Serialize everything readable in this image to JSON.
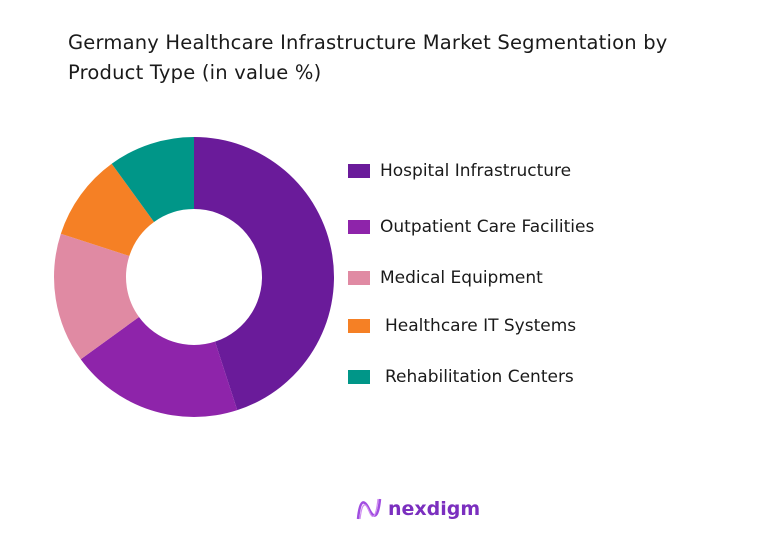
{
  "chart_data": {
    "type": "pie",
    "variant": "donut",
    "title": "Germany Healthcare Infrastructure Market Segmentation by Product Type (in value %)",
    "categories": [
      "Hospital Infrastructure",
      "Outpatient Care Facilities",
      "Medical Equipment",
      "Healthcare IT Systems",
      "Rehabilitation Centers"
    ],
    "values": [
      45,
      20,
      15,
      10,
      10
    ],
    "colors": [
      "#6a1b9a",
      "#8e24aa",
      "#e08aa3",
      "#f58025",
      "#009688"
    ],
    "legend_position": "right"
  },
  "brand": {
    "name": "nexdigm",
    "color": "#7b2fbf"
  }
}
